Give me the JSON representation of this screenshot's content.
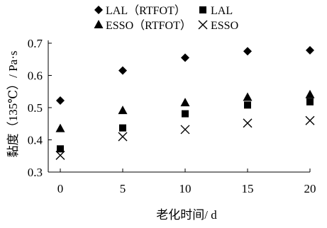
{
  "chart_data": {
    "type": "scatter",
    "title": "",
    "xlabel": "老化时间/ d",
    "ylabel": "黏度（135℃）/ Pa·s",
    "xlim": [
      0,
      20
    ],
    "ylim": [
      0.3,
      0.7
    ],
    "xticks": [
      "0",
      "5",
      "10",
      "15",
      "20"
    ],
    "yticks": [
      "0.3",
      "0.4",
      "0.5",
      "0.6",
      "0.7"
    ],
    "legend_position": "top",
    "grid": false,
    "series": [
      {
        "name": "LAL（RTFOT）",
        "marker": "diamond",
        "x": [
          0,
          5,
          10,
          15,
          20
        ],
        "y": [
          0.522,
          0.615,
          0.655,
          0.675,
          0.678
        ]
      },
      {
        "name": "LAL",
        "marker": "square",
        "x": [
          0,
          5,
          10,
          15,
          20
        ],
        "y": [
          0.372,
          0.437,
          0.481,
          0.508,
          0.518
        ]
      },
      {
        "name": "ESSO（RTFOT）",
        "marker": "triangle",
        "x": [
          0,
          5,
          10,
          15,
          20
        ],
        "y": [
          0.435,
          0.491,
          0.515,
          0.532,
          0.54
        ]
      },
      {
        "name": "ESSO",
        "marker": "cross",
        "x": [
          0,
          5,
          10,
          15,
          20
        ],
        "y": [
          0.352,
          0.41,
          0.432,
          0.452,
          0.46
        ]
      }
    ]
  }
}
